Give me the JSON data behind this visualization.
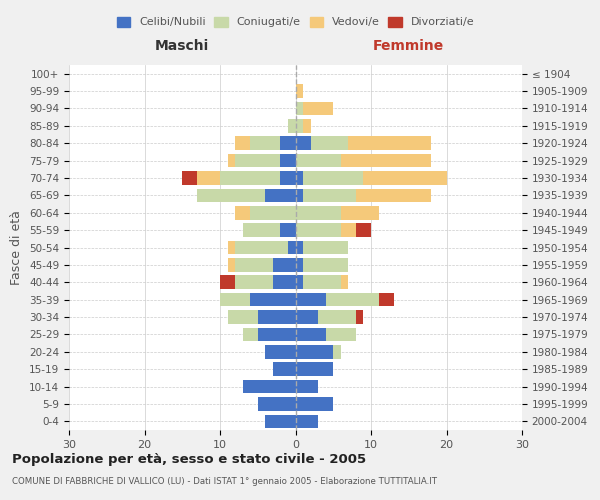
{
  "age_groups": [
    "0-4",
    "5-9",
    "10-14",
    "15-19",
    "20-24",
    "25-29",
    "30-34",
    "35-39",
    "40-44",
    "45-49",
    "50-54",
    "55-59",
    "60-64",
    "65-69",
    "70-74",
    "75-79",
    "80-84",
    "85-89",
    "90-94",
    "95-99",
    "100+"
  ],
  "birth_years": [
    "2000-2004",
    "1995-1999",
    "1990-1994",
    "1985-1989",
    "1980-1984",
    "1975-1979",
    "1970-1974",
    "1965-1969",
    "1960-1964",
    "1955-1959",
    "1950-1954",
    "1945-1949",
    "1940-1944",
    "1935-1939",
    "1930-1934",
    "1925-1929",
    "1920-1924",
    "1915-1919",
    "1910-1914",
    "1905-1909",
    "≤ 1904"
  ],
  "maschi": {
    "celibi": [
      4,
      5,
      7,
      3,
      4,
      5,
      5,
      6,
      3,
      3,
      1,
      2,
      0,
      4,
      2,
      2,
      2,
      0,
      0,
      0,
      0
    ],
    "coniugati": [
      0,
      0,
      0,
      0,
      0,
      2,
      4,
      4,
      5,
      5,
      7,
      5,
      6,
      9,
      8,
      6,
      4,
      1,
      0,
      0,
      0
    ],
    "vedovi": [
      0,
      0,
      0,
      0,
      0,
      0,
      0,
      0,
      0,
      1,
      1,
      0,
      2,
      0,
      3,
      1,
      2,
      0,
      0,
      0,
      0
    ],
    "divorziati": [
      0,
      0,
      0,
      0,
      0,
      0,
      0,
      0,
      2,
      0,
      0,
      0,
      0,
      0,
      2,
      0,
      0,
      0,
      0,
      0,
      0
    ]
  },
  "femmine": {
    "nubili": [
      3,
      5,
      3,
      5,
      5,
      4,
      3,
      4,
      1,
      1,
      1,
      0,
      0,
      1,
      1,
      0,
      2,
      0,
      0,
      0,
      0
    ],
    "coniugate": [
      0,
      0,
      0,
      0,
      1,
      4,
      5,
      7,
      5,
      6,
      6,
      6,
      6,
      7,
      8,
      6,
      5,
      1,
      1,
      0,
      0
    ],
    "vedove": [
      0,
      0,
      0,
      0,
      0,
      0,
      0,
      0,
      1,
      0,
      0,
      2,
      5,
      10,
      11,
      12,
      11,
      1,
      4,
      1,
      0
    ],
    "divorziate": [
      0,
      0,
      0,
      0,
      0,
      0,
      1,
      2,
      0,
      0,
      0,
      2,
      0,
      0,
      0,
      0,
      0,
      0,
      0,
      0,
      0
    ]
  },
  "colors": {
    "celibi_nubili": "#4472C4",
    "coniugati": "#c8d9a8",
    "vedovi": "#f5c97a",
    "divorziati": "#c0392b"
  },
  "xlim": 30,
  "title": "Popolazione per età, sesso e stato civile - 2005",
  "subtitle": "COMUNE DI FABBRICHE DI VALLICO (LU) - Dati ISTAT 1° gennaio 2005 - Elaborazione TUTTITALIA.IT",
  "ylabel_left": "Fasce di età",
  "xlabel_left": "Maschi",
  "xlabel_right": "Femmine",
  "bg_color": "#f0f0f0",
  "plot_bg": "#ffffff",
  "grid_color": "#cccccc"
}
